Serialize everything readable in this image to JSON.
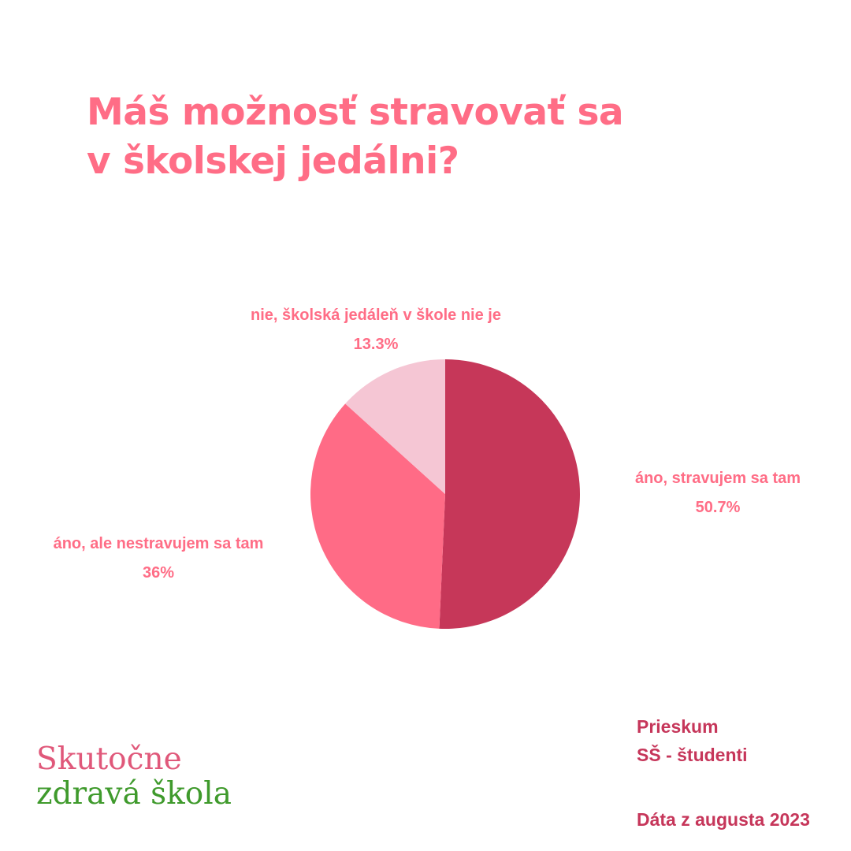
{
  "title": {
    "line1": "Máš možnosť stravovať sa",
    "line2": "v školskej jedálni?"
  },
  "chart_data": {
    "type": "pie",
    "slices": [
      {
        "label": "áno, stravujem sa tam",
        "value": 50.7,
        "value_label": "50.7%",
        "color": "#c63759"
      },
      {
        "label": "áno, ale nestravujem sa tam",
        "value": 36,
        "value_label": "36%",
        "color": "#ff6b86"
      },
      {
        "label": "nie, školská jedáleň v škole nie je",
        "value": 13.3,
        "value_label": "13.3%",
        "color": "#f5c6d4"
      }
    ],
    "start_angle": "12 o'clock",
    "direction": "clockwise",
    "label_color": "#ff6d86"
  },
  "brand": {
    "line1": "Skutočne",
    "line2": "zdravá škola",
    "line1_color": "#e0587a",
    "line2_color": "#3f9a2c"
  },
  "info": {
    "survey": "Prieskum",
    "group": "SŠ - študenti",
    "date": "Dáta z augusta 2023"
  }
}
